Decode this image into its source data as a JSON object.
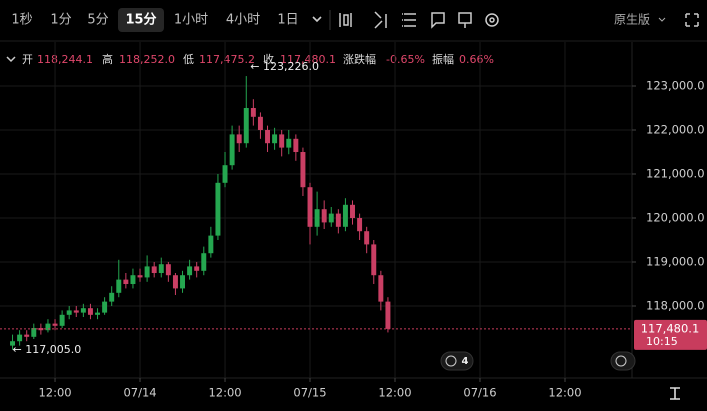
{
  "toolbar": {
    "intervals": [
      "1秒",
      "1分",
      "5分",
      "15分",
      "1小时",
      "4小时",
      "1日"
    ],
    "mode": "原生版"
  },
  "info": [
    {
      "label": "开",
      "value": "118,244.1"
    },
    {
      "label": "高",
      "value": "118,252.0"
    },
    {
      "label": "低",
      "value": "117,475.2"
    },
    {
      "label": "收",
      "value": "117,480.1"
    },
    {
      "label": "涨跌幅",
      "value": "-0.65%"
    },
    {
      "label": "振幅",
      "value": "0.66%"
    }
  ],
  "chart_data": {
    "type": "candlestick",
    "x": [
      6,
      7,
      8,
      9,
      10,
      11,
      12,
      13,
      14,
      15,
      16,
      17,
      18,
      19,
      20,
      21,
      22,
      23,
      24,
      25,
      26,
      27,
      28,
      29,
      30,
      31,
      32,
      33,
      34,
      35,
      36,
      37,
      38,
      39,
      40,
      41,
      42,
      43,
      44,
      45,
      46,
      47,
      48,
      49,
      50,
      51,
      52,
      53,
      54,
      55,
      56,
      57,
      58,
      59
    ],
    "open": [
      117100,
      117200,
      117350,
      117300,
      117500,
      117450,
      117600,
      117550,
      117800,
      117900,
      117850,
      117950,
      117800,
      117850,
      118100,
      118300,
      118600,
      118500,
      118700,
      118650,
      118900,
      118750,
      118950,
      118700,
      118400,
      118700,
      118900,
      118800,
      119200,
      119600,
      120800,
      121200,
      121900,
      121700,
      122500,
      122300,
      122000,
      121700,
      121900,
      121600,
      121800,
      121500,
      120700,
      119800,
      120200,
      119900,
      120100,
      119800,
      120300,
      120000,
      119700,
      119400,
      118700,
      118100
    ],
    "high": [
      117350,
      117450,
      117450,
      117600,
      117600,
      117700,
      117700,
      117900,
      118000,
      118000,
      118050,
      118050,
      117950,
      118200,
      118450,
      119050,
      118750,
      118850,
      118850,
      119150,
      119000,
      119100,
      119000,
      118750,
      118800,
      119050,
      119000,
      119350,
      119800,
      121000,
      121500,
      122100,
      122100,
      123226,
      122700,
      122400,
      122100,
      122050,
      122000,
      122000,
      121900,
      121600,
      120800,
      120600,
      120400,
      120250,
      120200,
      120450,
      120400,
      120100,
      119800,
      119500,
      118800,
      118200
    ],
    "low": [
      117005,
      117100,
      117200,
      117250,
      117350,
      117400,
      117450,
      117500,
      117700,
      117750,
      117750,
      117700,
      117700,
      117800,
      118000,
      118200,
      118400,
      118400,
      118550,
      118550,
      118650,
      118650,
      118550,
      118250,
      118300,
      118600,
      118650,
      118700,
      119100,
      119500,
      120700,
      121100,
      121500,
      121600,
      122100,
      121800,
      121500,
      121550,
      121400,
      121450,
      121300,
      120500,
      119400,
      119600,
      119750,
      119800,
      119650,
      119700,
      119850,
      119500,
      119200,
      118500,
      117900,
      117400
    ],
    "close": [
      117200,
      117350,
      117300,
      117500,
      117450,
      117600,
      117550,
      117800,
      117900,
      117850,
      117950,
      117800,
      117850,
      118100,
      118300,
      118600,
      118500,
      118700,
      118650,
      118900,
      118750,
      118950,
      118700,
      118400,
      118700,
      118900,
      118800,
      119200,
      119600,
      120800,
      121200,
      121900,
      121700,
      122500,
      122300,
      122000,
      121700,
      121900,
      121600,
      121800,
      121500,
      120700,
      119800,
      120200,
      119900,
      120100,
      119800,
      120300,
      120000,
      119700,
      119400,
      118700,
      118100,
      117480
    ],
    "up_color": "#25a750",
    "down_color": "#ca3f64",
    "xlim": [
      4.23,
      93.46
    ],
    "xticks": [
      {
        "value": 12,
        "label": "12:00"
      },
      {
        "value": 24,
        "label": "07/14"
      },
      {
        "value": 36,
        "label": "12:00"
      },
      {
        "value": 48,
        "label": "07/15"
      },
      {
        "value": 60,
        "label": "12:00"
      },
      {
        "value": 72,
        "label": "07/16"
      },
      {
        "value": 84,
        "label": "12:00"
      }
    ],
    "ylim": [
      116364,
      124000
    ],
    "yticks": [
      {
        "value": 118000,
        "label": "118,000.0"
      },
      {
        "value": 119000,
        "label": "119,000.0"
      },
      {
        "value": 120000,
        "label": "120,000.0"
      },
      {
        "value": 121000,
        "label": "121,000.0"
      },
      {
        "value": 122000,
        "label": "122,000.0"
      },
      {
        "value": 123000,
        "label": "123,000.0"
      }
    ],
    "grid": true,
    "high_label": "← 123,226.0",
    "low_label": "← 117,005.0",
    "last_price": {
      "value": 117480.1,
      "label": "117,480.1",
      "time": "10:15",
      "color": "#c83c5d"
    },
    "badge": "4"
  }
}
